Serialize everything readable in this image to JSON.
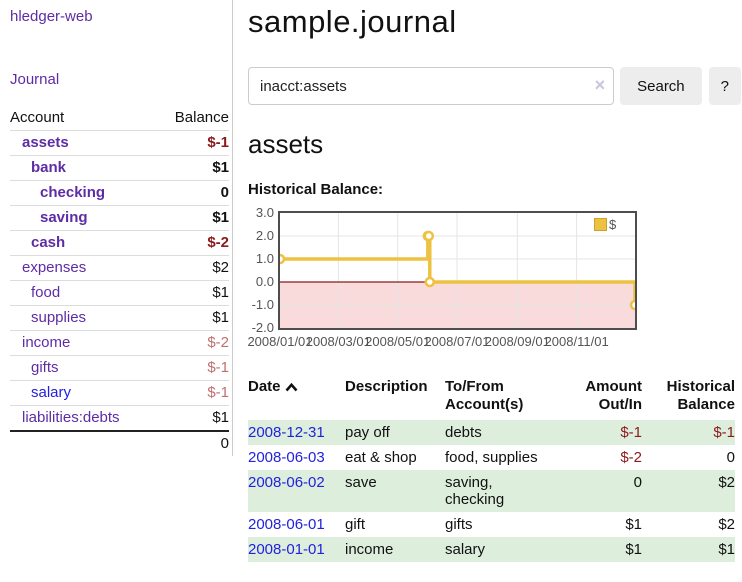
{
  "app": {
    "title": "hledger-web"
  },
  "sidebar": {
    "journal_link": "Journal",
    "table": {
      "account_header": "Account",
      "balance_header": "Balance",
      "rows": [
        {
          "name": "assets",
          "balance": "$-1",
          "indent": 0,
          "bold": true,
          "name_style": "purple",
          "balance_style": "neg"
        },
        {
          "name": "bank",
          "balance": "$1",
          "indent": 1,
          "bold": true,
          "name_style": "purple",
          "balance_style": ""
        },
        {
          "name": "checking",
          "balance": "0",
          "indent": 2,
          "bold": true,
          "name_style": "purple",
          "balance_style": ""
        },
        {
          "name": "saving",
          "balance": "$1",
          "indent": 2,
          "bold": true,
          "name_style": "purple",
          "balance_style": ""
        },
        {
          "name": "cash",
          "balance": "$-2",
          "indent": 1,
          "bold": true,
          "name_style": "purple",
          "balance_style": "neg"
        },
        {
          "name": "expenses",
          "balance": "$2",
          "indent": 0,
          "bold": false,
          "name_style": "purple",
          "balance_style": ""
        },
        {
          "name": "food",
          "balance": "$1",
          "indent": 1,
          "bold": false,
          "name_style": "purple",
          "balance_style": ""
        },
        {
          "name": "supplies",
          "balance": "$1",
          "indent": 1,
          "bold": false,
          "name_style": "purple",
          "balance_style": ""
        },
        {
          "name": "income",
          "balance": "$-2",
          "indent": 0,
          "bold": false,
          "name_style": "purple",
          "balance_style": "neg-light"
        },
        {
          "name": "gifts",
          "balance": "$-1",
          "indent": 1,
          "bold": false,
          "name_style": "purple",
          "balance_style": "neg-light"
        },
        {
          "name": "salary",
          "balance": "$-1",
          "indent": 1,
          "bold": false,
          "name_style": "blue",
          "balance_style": "neg-light"
        },
        {
          "name": "liabilities:debts",
          "balance": "$1",
          "indent": 0,
          "bold": false,
          "name_style": "purple",
          "balance_style": ""
        }
      ],
      "total": "0"
    }
  },
  "main": {
    "title": "sample.journal",
    "search": {
      "value": "inacct:assets",
      "clear_icon": "×",
      "search_button": "Search",
      "help_button": "?"
    },
    "account_heading": "assets",
    "chart_label": "Historical Balance:"
  },
  "chart_data": {
    "type": "line",
    "title": "Historical Balance",
    "step": true,
    "series": [
      {
        "name": "$",
        "points": [
          [
            "2008-01-01",
            1
          ],
          [
            "2008-06-01",
            2
          ],
          [
            "2008-06-02",
            2
          ],
          [
            "2008-06-03",
            0
          ],
          [
            "2008-12-31",
            -1
          ]
        ]
      }
    ],
    "x_range": [
      "2008-01-01",
      "2008-12-31"
    ],
    "ylim": [
      -2,
      3
    ],
    "y_ticks": [
      {
        "label": "3.0",
        "value": 3
      },
      {
        "label": "2.0",
        "value": 2
      },
      {
        "label": "1.0",
        "value": 1
      },
      {
        "label": "0.0",
        "value": 0
      },
      {
        "label": "-1.0",
        "value": -1
      },
      {
        "label": "-2.0",
        "value": -2
      }
    ],
    "x_ticks": [
      {
        "label": "2008/01/01",
        "date": "2008-01-01"
      },
      {
        "label": "2008/03/01",
        "date": "2008-03-01"
      },
      {
        "label": "2008/05/01",
        "date": "2008-05-01"
      },
      {
        "label": "2008/07/01",
        "date": "2008-07-01"
      },
      {
        "label": "2008/09/01",
        "date": "2008-09-01"
      },
      {
        "label": "2008/11/01",
        "date": "2008-11-01"
      }
    ],
    "legend": {
      "label": "$",
      "position": "top-right"
    },
    "grid": true,
    "colors": {
      "line": "#EDC240",
      "point_fill": "#ffffff",
      "negative_region": "#f9dbdb",
      "zero_line": "#8b1a1a",
      "gridline": "#e5e5e5",
      "border": "#4d4d4d"
    }
  },
  "register": {
    "headers": [
      {
        "lines": [
          "Date"
        ],
        "align": "left",
        "sorted": true
      },
      {
        "lines": [
          "Description"
        ],
        "align": "left"
      },
      {
        "lines": [
          "To/From",
          "Account(s)"
        ],
        "align": "left"
      },
      {
        "lines": [
          "Amount",
          "Out/In"
        ],
        "align": "right"
      },
      {
        "lines": [
          "Historical",
          "Balance"
        ],
        "align": "right"
      }
    ],
    "sort_icon": "chevron-up",
    "rows": [
      {
        "date": "2008-12-31",
        "description": "pay off",
        "accounts": [
          "debts"
        ],
        "amount": "$-1",
        "balance": "$-1"
      },
      {
        "date": "2008-06-03",
        "description": "eat & shop",
        "accounts": [
          "food, supplies"
        ],
        "amount": "$-2",
        "balance": "0"
      },
      {
        "date": "2008-06-02",
        "description": "save",
        "accounts": [
          "saving,",
          "checking"
        ],
        "amount": "0",
        "balance": "$2"
      },
      {
        "date": "2008-06-01",
        "description": "gift",
        "accounts": [
          "gifts"
        ],
        "amount": "$1",
        "balance": "$2"
      },
      {
        "date": "2008-01-01",
        "description": "income",
        "accounts": [
          "salary"
        ],
        "amount": "$1",
        "balance": "$1"
      }
    ]
  },
  "colors": {
    "link_purple": "#5e2ca5",
    "link_blue": "#2222dd",
    "negative_dark": "#8b1a1a",
    "negative_light": "#c07070",
    "row_stripe_green": "#ddeedd",
    "button_bg": "#ededed",
    "chart_gold": "#EDC240"
  }
}
